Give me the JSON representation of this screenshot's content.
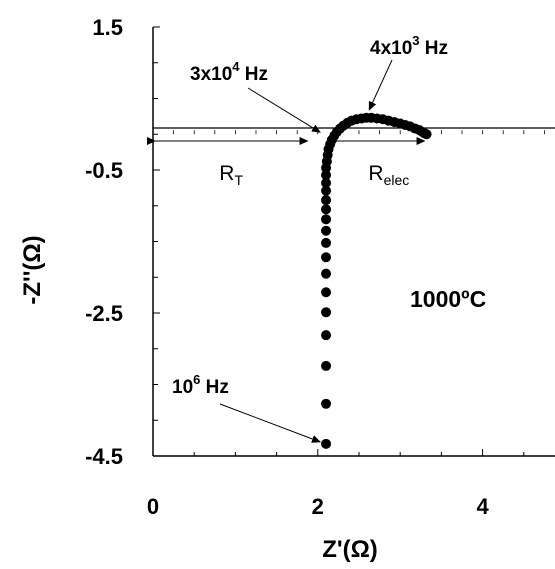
{
  "chart_data": {
    "type": "scatter",
    "xlabel": "Z'(Ω)",
    "ylabel": "-Z''(Ω)",
    "xlim": [
      0,
      5
    ],
    "ylim": [
      -4.5,
      1.5
    ],
    "x_ticks": [
      0,
      2,
      4
    ],
    "y_ticks": [
      1.5,
      -0.5,
      -2.5,
      -4.5
    ],
    "x_tick_labels": [
      "0",
      "2",
      "4"
    ],
    "y_tick_labels": [
      "1.5",
      "-0.5",
      "-2.5",
      "-4.5"
    ],
    "grid": false,
    "zero_line": true,
    "marker_color": "#000000",
    "points": [
      {
        "x": 2.1,
        "y": -4.33
      },
      {
        "x": 2.1,
        "y": -3.77
      },
      {
        "x": 2.1,
        "y": -3.24
      },
      {
        "x": 2.1,
        "y": -2.81
      },
      {
        "x": 2.1,
        "y": -2.49
      },
      {
        "x": 2.1,
        "y": -2.21
      },
      {
        "x": 2.1,
        "y": -1.95
      },
      {
        "x": 2.1,
        "y": -1.72
      },
      {
        "x": 2.1,
        "y": -1.52
      },
      {
        "x": 2.1,
        "y": -1.35
      },
      {
        "x": 2.1,
        "y": -1.19
      },
      {
        "x": 2.1,
        "y": -1.05
      },
      {
        "x": 2.1,
        "y": -0.92
      },
      {
        "x": 2.1,
        "y": -0.79
      },
      {
        "x": 2.1,
        "y": -0.68
      },
      {
        "x": 2.1,
        "y": -0.57
      },
      {
        "x": 2.1,
        "y": -0.47
      },
      {
        "x": 2.11,
        "y": -0.38
      },
      {
        "x": 2.12,
        "y": -0.29
      },
      {
        "x": 2.13,
        "y": -0.21
      },
      {
        "x": 2.15,
        "y": -0.14
      },
      {
        "x": 2.17,
        "y": -0.08
      },
      {
        "x": 2.2,
        "y": -0.02
      },
      {
        "x": 2.23,
        "y": 0.03
      },
      {
        "x": 2.27,
        "y": 0.08
      },
      {
        "x": 2.31,
        "y": 0.12
      },
      {
        "x": 2.36,
        "y": 0.16
      },
      {
        "x": 2.41,
        "y": 0.19
      },
      {
        "x": 2.47,
        "y": 0.21
      },
      {
        "x": 2.53,
        "y": 0.22
      },
      {
        "x": 2.59,
        "y": 0.23
      },
      {
        "x": 2.65,
        "y": 0.23
      },
      {
        "x": 2.72,
        "y": 0.22
      },
      {
        "x": 2.79,
        "y": 0.21
      },
      {
        "x": 2.86,
        "y": 0.19
      },
      {
        "x": 2.93,
        "y": 0.17
      },
      {
        "x": 3.0,
        "y": 0.15
      },
      {
        "x": 3.06,
        "y": 0.13
      },
      {
        "x": 3.12,
        "y": 0.11
      },
      {
        "x": 3.18,
        "y": 0.08
      },
      {
        "x": 3.23,
        "y": 0.06
      },
      {
        "x": 3.27,
        "y": 0.03
      },
      {
        "x": 3.3,
        "y": 0.01
      },
      {
        "x": 3.32,
        "y": 0.0
      }
    ],
    "annotations": [
      {
        "text": "3x10",
        "sup": "4",
        "suffix": " Hz",
        "arrow_to": {
          "x": 2.1,
          "y": 0.0
        }
      },
      {
        "text": "4x10",
        "sup": "3",
        "suffix": " Hz",
        "arrow_to": {
          "x": 2.6,
          "y": 0.23
        }
      },
      {
        "text": "10",
        "sup": "6",
        "suffix": " Hz",
        "arrow_to": {
          "x": 2.1,
          "y": -4.33
        }
      }
    ],
    "ranges": [
      {
        "label": "R",
        "sub": "T",
        "from": 0,
        "to": 1.9
      },
      {
        "label": "R",
        "sub": "elec",
        "from": 2.2,
        "to": 3.32
      }
    ],
    "temperature_label": "1000ºC"
  }
}
